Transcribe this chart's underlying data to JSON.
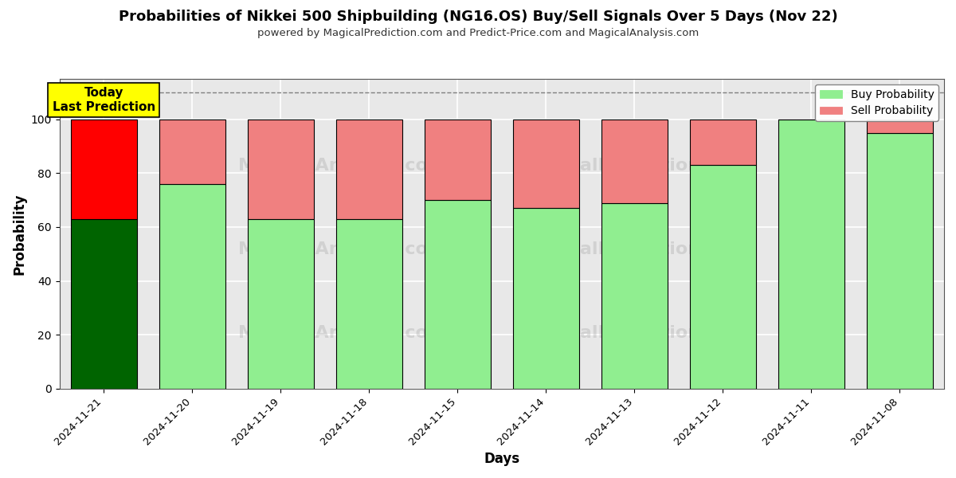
{
  "title": "Probabilities of Nikkei 500 Shipbuilding (NG16.OS) Buy/Sell Signals Over 5 Days (Nov 22)",
  "subtitle": "powered by MagicalPrediction.com and Predict-Price.com and MagicalAnalysis.com",
  "xlabel": "Days",
  "ylabel": "Probability",
  "days": [
    "2024-11-21",
    "2024-11-20",
    "2024-11-19",
    "2024-11-18",
    "2024-11-15",
    "2024-11-14",
    "2024-11-13",
    "2024-11-12",
    "2024-11-11",
    "2024-11-08"
  ],
  "buy_values": [
    63,
    76,
    63,
    63,
    70,
    67,
    69,
    83,
    100,
    95
  ],
  "sell_values": [
    37,
    24,
    37,
    37,
    30,
    33,
    31,
    17,
    0,
    5
  ],
  "today_bar_buy_color": "#006400",
  "today_bar_sell_color": "#FF0000",
  "buy_color": "#90EE90",
  "sell_color": "#F08080",
  "today_annotation_text": "Today\nLast Prediction",
  "today_annotation_bg": "#FFFF00",
  "dashed_line_y": 110,
  "ylim": [
    0,
    115
  ],
  "yticks": [
    0,
    20,
    40,
    60,
    80,
    100
  ],
  "bar_edge_color": "#000000",
  "bar_linewidth": 0.8,
  "plot_bg_color": "#e8e8e8",
  "fig_bg_color": "#ffffff",
  "grid_color": "#ffffff",
  "bar_width": 0.75
}
